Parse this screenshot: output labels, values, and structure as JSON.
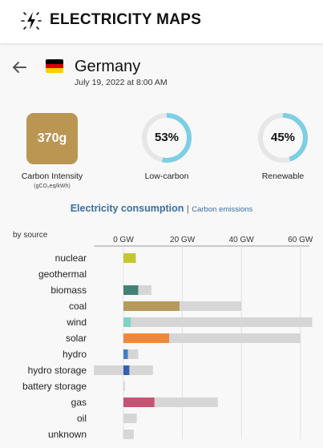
{
  "header": {
    "brand": "ELECTRICITY MAPS",
    "logo_icon": "lightning-bolt-icon"
  },
  "zone": {
    "name": "Germany",
    "datetime": "July 19, 2022 at 8:00 AM",
    "flag_colors": [
      "#000000",
      "#dd0000",
      "#ffce00"
    ]
  },
  "metrics": {
    "carbon_intensity": {
      "value": "370g",
      "label": "Carbon Intensity",
      "unit": "(gCO₂eq/kWh)",
      "color": "#bb9652"
    },
    "low_carbon": {
      "percent": 53,
      "text": "53%",
      "label": "Low-carbon"
    },
    "renewable": {
      "percent": 45,
      "text": "45%",
      "label": "Renewable"
    },
    "ring_color": "#7ccfe4",
    "ring_track": "#e6e6e6"
  },
  "tabs": {
    "active": "Electricity consumption",
    "separator": "|",
    "other": "Carbon emissions"
  },
  "chart_data": {
    "type": "bar",
    "label": "by source",
    "xlim": [
      -10,
      63
    ],
    "ticks": [
      0,
      20,
      40,
      60
    ],
    "tick_labels": [
      "0 GW",
      "20 GW",
      "40 GW",
      "60 GW"
    ],
    "categories": [
      "nuclear",
      "geothermal",
      "biomass",
      "coal",
      "wind",
      "solar",
      "hydro",
      "hydro storage",
      "battery storage",
      "gas",
      "oil",
      "unknown"
    ],
    "series": [
      {
        "values": [
          4.2,
          0,
          5,
          19,
          2.5,
          15.5,
          1.5,
          2,
          0,
          10.5,
          0,
          0
        ]
      },
      {
        "values": [
          4.2,
          0,
          9.5,
          40,
          64,
          60,
          5,
          10,
          0.5,
          32,
          4.5,
          3.5
        ],
        "min": [
          0,
          0,
          0,
          0,
          0,
          0,
          0,
          -10,
          0,
          0,
          0,
          0
        ]
      }
    ],
    "colors": [
      "#c4c82d",
      "#e3b06b",
      "#428373",
      "#b59a5a",
      "#80d3c3",
      "#f0883b",
      "#3f7fc8",
      "#2d62b5",
      "#a0a0a0",
      "#c55472",
      "#878787",
      "#a0a0a0"
    ],
    "capacity_color": "#d6d6d6"
  }
}
